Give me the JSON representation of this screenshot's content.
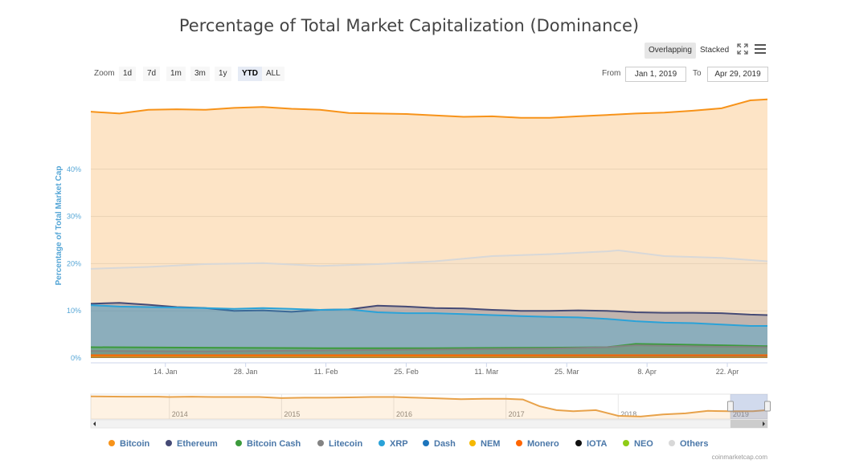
{
  "title": "Percentage of Total Market Capitalization (Dominance)",
  "modes": {
    "overlapping": "Overlapping",
    "stacked": "Stacked"
  },
  "icons": {
    "fullscreen": "fullscreen-icon",
    "menu": "hamburger-menu-icon"
  },
  "zoom": {
    "label": "Zoom",
    "buttons": [
      "1d",
      "7d",
      "1m",
      "3m",
      "1y",
      "YTD",
      "ALL"
    ],
    "active": "YTD"
  },
  "range": {
    "from_label": "From",
    "from_value": "Jan 1, 2019",
    "to_label": "To",
    "to_value": "Apr 29, 2019"
  },
  "credit": "coinmarketcap.com",
  "chart_data": {
    "type": "area",
    "mode": "overlapping",
    "ylabel": "Percentage of Total Market Cap",
    "y_ticks": [
      "0%",
      "10%",
      "20%",
      "30%",
      "40%"
    ],
    "x_ticks": [
      "14. Jan",
      "28. Jan",
      "11. Feb",
      "25. Feb",
      "11. Mar",
      "25. Mar",
      "8. Apr",
      "22. Apr"
    ],
    "x_tick_days": [
      13,
      27,
      41,
      55,
      69,
      83,
      97,
      111
    ],
    "ylim": [
      0,
      55
    ],
    "grid": true,
    "legend_position": "bottom",
    "colors": {
      "Bitcoin": "#f7931a",
      "Ethereum": "#454a75",
      "Bitcoin Cash": "#3c9a3c",
      "Litecoin": "#838383",
      "XRP": "#2aa2d8",
      "Dash": "#1c75bc",
      "NEM": "#f5b800",
      "Monero": "#ff6600",
      "IOTA": "#111111",
      "NEO": "#8fcc17",
      "Others": "#d8d8d8"
    },
    "series": [
      {
        "name": "Bitcoin",
        "x": [
          0,
          5,
          10,
          15,
          20,
          25,
          30,
          35,
          40,
          45,
          50,
          55,
          60,
          65,
          70,
          75,
          80,
          85,
          90,
          95,
          100,
          105,
          110,
          115,
          118
        ],
        "y": [
          52.2,
          51.8,
          52.6,
          52.7,
          52.6,
          53.0,
          53.2,
          52.8,
          52.6,
          51.9,
          51.8,
          51.7,
          51.4,
          51.1,
          51.2,
          50.9,
          50.9,
          51.2,
          51.5,
          51.8,
          52.0,
          52.4,
          52.9,
          54.6,
          54.8
        ]
      },
      {
        "name": "Others",
        "x": [
          0,
          10,
          20,
          30,
          40,
          50,
          60,
          70,
          80,
          90,
          92,
          100,
          110,
          118
        ],
        "y": [
          18.9,
          19.3,
          19.9,
          20.1,
          19.5,
          19.9,
          20.5,
          21.6,
          22.0,
          22.6,
          22.8,
          21.6,
          21.2,
          20.5
        ]
      },
      {
        "name": "Ethereum",
        "x": [
          0,
          5,
          10,
          15,
          20,
          25,
          30,
          35,
          40,
          45,
          50,
          55,
          60,
          65,
          70,
          75,
          80,
          85,
          90,
          95,
          100,
          105,
          110,
          115,
          118
        ],
        "y": [
          11.5,
          11.7,
          11.3,
          10.8,
          10.6,
          10.0,
          10.1,
          9.8,
          10.2,
          10.3,
          11.1,
          10.9,
          10.6,
          10.5,
          10.2,
          10.0,
          10.0,
          10.1,
          10.0,
          9.7,
          9.6,
          9.6,
          9.5,
          9.2,
          9.1
        ]
      },
      {
        "name": "XRP",
        "x": [
          0,
          5,
          10,
          15,
          20,
          25,
          30,
          35,
          40,
          45,
          50,
          55,
          60,
          65,
          70,
          75,
          80,
          85,
          90,
          95,
          100,
          105,
          110,
          115,
          118
        ],
        "y": [
          11.2,
          10.9,
          10.8,
          10.7,
          10.6,
          10.4,
          10.6,
          10.4,
          10.2,
          10.3,
          9.7,
          9.5,
          9.5,
          9.3,
          9.1,
          8.9,
          8.7,
          8.6,
          8.3,
          7.8,
          7.5,
          7.4,
          7.1,
          6.8,
          6.8
        ]
      },
      {
        "name": "Bitcoin Cash",
        "x": [
          0,
          20,
          40,
          60,
          80,
          90,
          95,
          100,
          110,
          118
        ],
        "y": [
          2.3,
          2.2,
          2.1,
          2.1,
          2.2,
          2.3,
          3.0,
          2.9,
          2.7,
          2.5
        ]
      },
      {
        "name": "Litecoin",
        "x": [
          0,
          20,
          40,
          60,
          80,
          90,
          95,
          100,
          110,
          118
        ],
        "y": [
          1.5,
          1.4,
          1.6,
          1.8,
          2.0,
          2.3,
          2.7,
          2.6,
          2.4,
          2.3
        ]
      },
      {
        "name": "NEO",
        "x": [
          0,
          59,
          118
        ],
        "y": [
          0.5,
          0.5,
          0.5
        ]
      },
      {
        "name": "IOTA",
        "x": [
          0,
          59,
          118
        ],
        "y": [
          0.6,
          0.6,
          0.6
        ]
      },
      {
        "name": "NEM",
        "x": [
          0,
          59,
          118
        ],
        "y": [
          0.3,
          0.3,
          0.3
        ]
      },
      {
        "name": "Dash",
        "x": [
          0,
          59,
          118
        ],
        "y": [
          0.6,
          0.6,
          0.5
        ]
      },
      {
        "name": "Monero",
        "x": [
          0,
          59,
          118
        ],
        "y": [
          0.6,
          0.6,
          0.6
        ]
      }
    ],
    "navigator": {
      "x_labels": [
        "2014",
        "2015",
        "2016",
        "2017",
        "2018",
        "2019"
      ],
      "series_name": "Bitcoin",
      "x": [
        2013.3,
        2013.6,
        2013.9,
        2014.0,
        2014.2,
        2014.4,
        2014.6,
        2014.8,
        2015.0,
        2015.2,
        2015.4,
        2015.6,
        2015.8,
        2016.0,
        2016.2,
        2016.4,
        2016.6,
        2016.8,
        2017.0,
        2017.15,
        2017.3,
        2017.45,
        2017.6,
        2017.8,
        2018.0,
        2018.2,
        2018.4,
        2018.6,
        2018.8,
        2019.0,
        2019.2,
        2019.33
      ],
      "y": [
        94,
        93,
        93,
        92,
        93,
        92,
        92,
        92,
        89,
        90,
        90,
        91,
        92,
        92,
        90,
        88,
        86,
        87,
        87,
        85,
        66,
        55,
        52,
        55,
        39,
        37,
        43,
        46,
        53,
        52,
        52,
        55
      ],
      "xlim": [
        2013.3,
        2019.33
      ],
      "ylim": [
        30,
        100
      ],
      "window_start": 2019.0,
      "window_end": 2019.33
    }
  },
  "legend": [
    "Bitcoin",
    "Ethereum",
    "Bitcoin Cash",
    "Litecoin",
    "XRP",
    "Dash",
    "NEM",
    "Monero",
    "IOTA",
    "NEO",
    "Others"
  ]
}
